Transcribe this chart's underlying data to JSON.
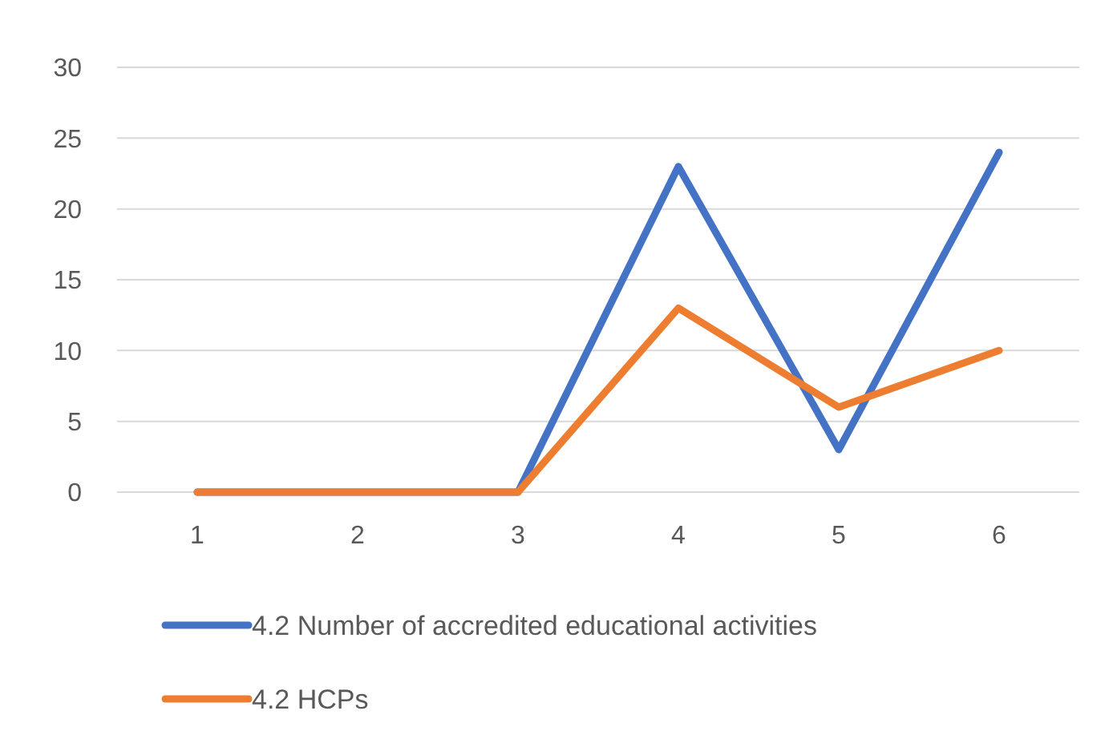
{
  "chart_data": {
    "type": "line",
    "categories": [
      "1",
      "2",
      "3",
      "4",
      "5",
      "6"
    ],
    "series": [
      {
        "name": "4.2 Number of accredited educational activities",
        "color": "#4472c4",
        "values": [
          0,
          0,
          0,
          23,
          3,
          24
        ]
      },
      {
        "name": "4.2 HCPs",
        "color": "#ed7d31",
        "values": [
          0,
          0,
          0,
          13,
          6,
          10
        ]
      }
    ],
    "ylim": [
      0,
      30
    ],
    "yticks": [
      0,
      5,
      10,
      15,
      20,
      25,
      30
    ],
    "grid": "y",
    "legend": "bottom",
    "marker": "none",
    "line_style": "solid"
  }
}
